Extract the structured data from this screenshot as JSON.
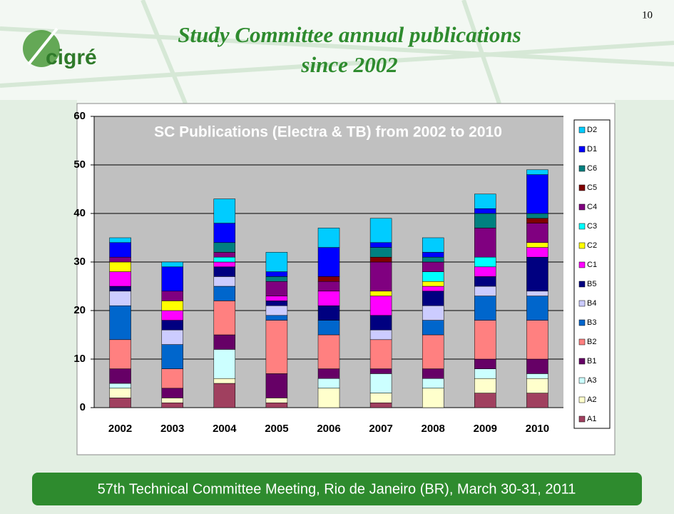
{
  "page_number": "10",
  "logo": "cigré",
  "slide_title": "Study Committee annual publications since 2002",
  "footer": "57th Technical Committee Meeting, Rio de Janeiro (BR), March 30-31, 2011",
  "chart_data": {
    "type": "stacked_bar",
    "title": "SC Publications (Electra & TB) from 2002 to 2010",
    "categories": [
      "2002",
      "2003",
      "2004",
      "2005",
      "2006",
      "2007",
      "2008",
      "2009",
      "2010"
    ],
    "ylim": [
      0,
      60
    ],
    "yticks": [
      0,
      10,
      20,
      30,
      40,
      50,
      60
    ],
    "grid": true,
    "legend": "right",
    "series": [
      {
        "name": "A1",
        "color": "#a0405f",
        "values": [
          2,
          1,
          5,
          1,
          0,
          1,
          0,
          3,
          3
        ]
      },
      {
        "name": "A2",
        "color": "#ffffcc",
        "values": [
          2,
          1,
          1,
          1,
          4,
          2,
          4,
          3,
          3
        ]
      },
      {
        "name": "A3",
        "color": "#ccffff",
        "values": [
          1,
          0,
          6,
          0,
          2,
          4,
          2,
          2,
          1
        ]
      },
      {
        "name": "B1",
        "color": "#660066",
        "values": [
          3,
          2,
          3,
          5,
          2,
          1,
          2,
          2,
          3
        ]
      },
      {
        "name": "B2",
        "color": "#ff8080",
        "values": [
          6,
          4,
          7,
          11,
          7,
          6,
          7,
          8,
          8
        ]
      },
      {
        "name": "B3",
        "color": "#0066cc",
        "values": [
          7,
          5,
          3,
          1,
          3,
          0,
          3,
          5,
          5
        ]
      },
      {
        "name": "B4",
        "color": "#ccccff",
        "values": [
          3,
          3,
          2,
          2,
          0,
          2,
          3,
          2,
          1
        ]
      },
      {
        "name": "B5",
        "color": "#000080",
        "values": [
          1,
          2,
          2,
          1,
          3,
          3,
          3,
          2,
          7
        ]
      },
      {
        "name": "C1",
        "color": "#ff00ff",
        "values": [
          3,
          2,
          1,
          1,
          3,
          4,
          1,
          2,
          2
        ]
      },
      {
        "name": "C2",
        "color": "#ffff00",
        "values": [
          2,
          2,
          0,
          0,
          0,
          1,
          1,
          0,
          1
        ]
      },
      {
        "name": "C3",
        "color": "#00ffff",
        "values": [
          0,
          0,
          1,
          0,
          0,
          0,
          2,
          2,
          0
        ]
      },
      {
        "name": "C4",
        "color": "#800080",
        "values": [
          1,
          2,
          1,
          3,
          2,
          6,
          2,
          6,
          4
        ]
      },
      {
        "name": "C5",
        "color": "#800000",
        "values": [
          0,
          0,
          0,
          0,
          1,
          1,
          0,
          0,
          1
        ]
      },
      {
        "name": "C6",
        "color": "#008080",
        "values": [
          0,
          0,
          2,
          1,
          0,
          2,
          1,
          3,
          1
        ]
      },
      {
        "name": "D1",
        "color": "#0000ff",
        "values": [
          3,
          5,
          4,
          1,
          6,
          1,
          1,
          1,
          8
        ]
      },
      {
        "name": "D2",
        "color": "#00ccff",
        "values": [
          1,
          1,
          5,
          4,
          4,
          5,
          3,
          3,
          1
        ]
      }
    ]
  }
}
